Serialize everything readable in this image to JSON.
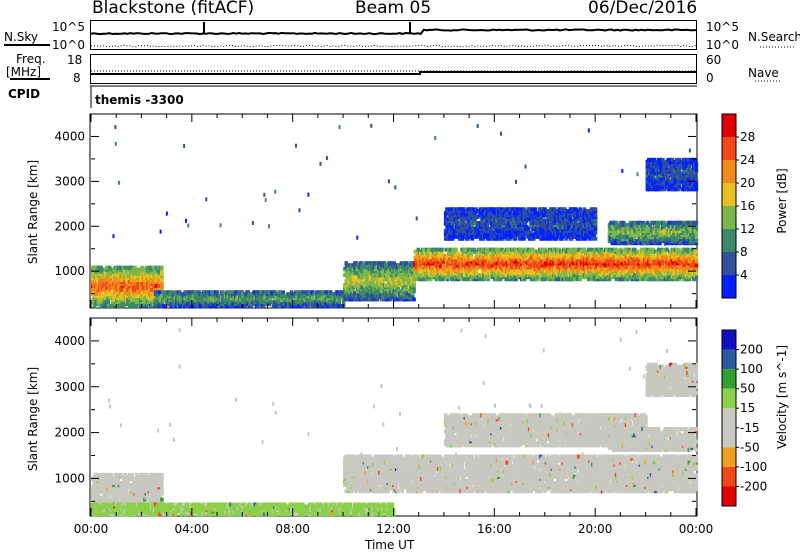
{
  "header": {
    "station": "Blackstone (fitACF)",
    "beam": "Beam 05",
    "date": "06/Dec/2016"
  },
  "status_panels": {
    "nsky_label": "N.Sky",
    "nsearch_label": "N.Search",
    "noise_tick_top": "10^5",
    "noise_tick_bottom": "10^0",
    "noise_tick_top_right": "10^5",
    "noise_tick_bottom_right": "10^0",
    "freq_label": "Freq.",
    "freq_unit": "[MHz]",
    "freq_tick_top": "18",
    "freq_tick_bottom": "8",
    "nave_label": "Nave",
    "nave_tick_top": "60",
    "nave_tick_bottom": "0",
    "cpid_label": "CPID",
    "cpid_value": "themis -3300"
  },
  "colors": {
    "power": [
      "#0022ff",
      "#2f4f9f",
      "#3a8a6a",
      "#7ab84a",
      "#e8c020",
      "#f08a18",
      "#f04818",
      "#e00000"
    ],
    "velocity": [
      "#e00000",
      "#f04818",
      "#f0a020",
      "#c8c8c0",
      "#c8c8c0",
      "#8ad048",
      "#30a030",
      "#2a5aa0",
      "#1010c0"
    ],
    "ground_gray": "#c8c8c0"
  },
  "chart_data": [
    {
      "type": "heatmap",
      "panel": "power",
      "xlabel": "Time UT",
      "ylabel": "Slant Range [km]",
      "x_ticks": [
        "00:00",
        "04:00",
        "08:00",
        "12:00",
        "16:00",
        "20:00",
        "00:00"
      ],
      "x_range_hours": [
        0,
        24
      ],
      "y_ticks": [
        1000,
        2000,
        3000,
        4000
      ],
      "ylim": [
        180,
        4500
      ],
      "colorbar_label": "Power [dB]",
      "colorbar_ticks": [
        4,
        8,
        12,
        16,
        20,
        24,
        28
      ],
      "colorbar_range": [
        0,
        30
      ],
      "scatter_bands": [
        {
          "t0": 0.0,
          "t1": 2.8,
          "r0": 200,
          "r1": 1100,
          "peak": 24
        },
        {
          "t0": 2.5,
          "t1": 10.0,
          "r0": 200,
          "r1": 550,
          "peak": 12
        },
        {
          "t0": 10.0,
          "t1": 12.8,
          "r0": 350,
          "r1": 1200,
          "peak": 16
        },
        {
          "t0": 12.8,
          "t1": 24.0,
          "r0": 800,
          "r1": 1500,
          "peak": 26
        },
        {
          "t0": 14.0,
          "t1": 20.0,
          "r0": 1700,
          "r1": 2400,
          "peak": 6
        },
        {
          "t0": 20.5,
          "t1": 24.0,
          "r0": 1600,
          "r1": 2100,
          "peak": 14
        },
        {
          "t0": 22.0,
          "t1": 24.0,
          "r0": 2800,
          "r1": 3500,
          "peak": 6
        }
      ]
    },
    {
      "type": "heatmap",
      "panel": "velocity",
      "xlabel": "Time UT",
      "ylabel": "Slant Range [km]",
      "x_ticks": [
        "00:00",
        "04:00",
        "08:00",
        "12:00",
        "16:00",
        "20:00",
        "00:00"
      ],
      "x_range_hours": [
        0,
        24
      ],
      "y_ticks": [
        1000,
        2000,
        3000,
        4000
      ],
      "ylim": [
        180,
        4500
      ],
      "colorbar_label": "Velocity [m s^-1]",
      "colorbar_ticks": [
        200,
        100,
        50,
        15,
        -15,
        -50,
        -100,
        -200
      ],
      "colorbar_range": [
        -250,
        250
      ],
      "scatter_bands": [
        {
          "t0": 0.0,
          "t1": 2.8,
          "r0": 200,
          "r1": 1100,
          "v": 0
        },
        {
          "t0": 0.0,
          "t1": 12.0,
          "r0": 200,
          "r1": 450,
          "v": 40
        },
        {
          "t0": 10.0,
          "t1": 24.0,
          "r0": 700,
          "r1": 1500,
          "v": 0
        },
        {
          "t0": 14.0,
          "t1": 22.0,
          "r0": 1700,
          "r1": 2400,
          "v": 0
        },
        {
          "t0": 20.5,
          "t1": 24.0,
          "r0": 1600,
          "r1": 2100,
          "v": -30
        },
        {
          "t0": 22.0,
          "t1": 24.0,
          "r0": 2800,
          "r1": 3500,
          "v": -20
        }
      ]
    }
  ]
}
